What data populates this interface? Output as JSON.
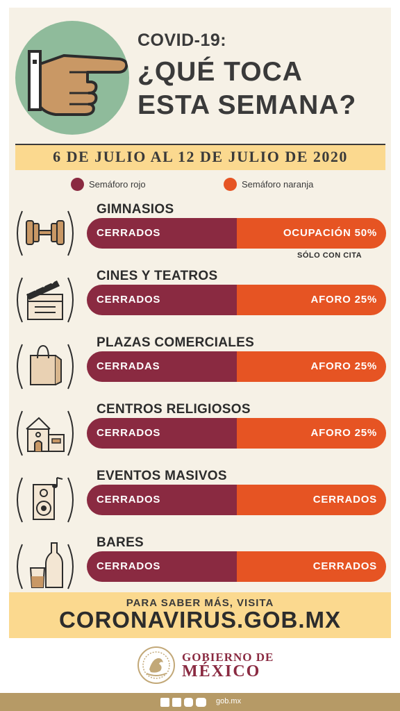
{
  "header": {
    "line1": "COVID-19:",
    "line2": "¿QUÉ TOCA",
    "line3": "ESTA SEMANA?"
  },
  "date_range": "6 DE JULIO AL 12 DE JULIO DE 2020",
  "legend": [
    {
      "label": "Semáforo rojo",
      "color": "#8a2a41"
    },
    {
      "label": "Semáforo naranja",
      "color": "#e65423"
    }
  ],
  "rows": [
    {
      "title": "GIMNASIOS",
      "rojo": "CERRADOS",
      "naranja": "OCUPACIÓN 50%",
      "note": "SÓLO CON CITA",
      "icon": "dumbbell-icon"
    },
    {
      "title": "CINES Y TEATROS",
      "rojo": "CERRADOS",
      "naranja": "AFORO 25%",
      "icon": "clapperboard-icon"
    },
    {
      "title": "PLAZAS COMERCIALES",
      "rojo": "CERRADAS",
      "naranja": "AFORO 25%",
      "icon": "shopping-bag-icon"
    },
    {
      "title": "CENTROS RELIGIOSOS",
      "rojo": "CERRADOS",
      "naranja": "AFORO 25%",
      "icon": "building-icon"
    },
    {
      "title": "EVENTOS MASIVOS",
      "rojo": "CERRADOS",
      "naranja": "CERRADOS",
      "icon": "speaker-icon"
    },
    {
      "title": "BARES",
      "rojo": "CERRADOS",
      "naranja": "CERRADOS",
      "icon": "bottle-glass-icon"
    }
  ],
  "footer": {
    "line1": "PARA SABER MÁS, VISITA",
    "url": "CORONAVIRUS.GOB.MX"
  },
  "government": {
    "line1": "GOBIERNO DE",
    "line2": "MÉXICO"
  },
  "bottom_bar": {
    "icons": [
      "facebook-icon",
      "twitter-icon",
      "instagram-icon",
      "youtube-icon"
    ],
    "site": "gob.mx"
  },
  "colors": {
    "cream": "#f6f1e6",
    "band": "#fbd98f",
    "red": "#8a2a41",
    "orange": "#e65423",
    "green": "#8fbb9b",
    "gold": "#b69a66"
  }
}
